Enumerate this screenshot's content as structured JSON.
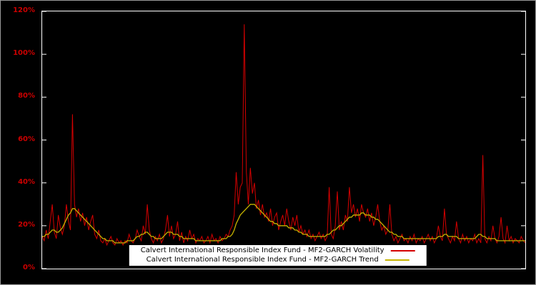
{
  "figure": {
    "background_color": "#000000",
    "plot_border_color": "#ffffff",
    "axis_label_color": "#cc0000",
    "outer_border_color": "#9a9a9a"
  },
  "chart_data": {
    "type": "line",
    "title": "",
    "xlabel": "",
    "ylabel": "",
    "ylim": [
      0,
      120
    ],
    "ytick_values": [
      0,
      20,
      40,
      60,
      80,
      100,
      120
    ],
    "ytick_labels": [
      "0%",
      "20%",
      "40%",
      "60%",
      "80%",
      "100%",
      "120%"
    ],
    "xtick_labels": [],
    "grid": false,
    "legend_position": "inside-bottom-center",
    "series": [
      {
        "id": "volatility",
        "name": "Calvert International Responsible Index Fund - MF2-GARCH Volatility",
        "color": "#d40000",
        "stroke_width": 1,
        "values": [
          15,
          13,
          18,
          14,
          22,
          30,
          17,
          14,
          25,
          19,
          16,
          20,
          30,
          22,
          18,
          72,
          30,
          24,
          28,
          22,
          26,
          20,
          24,
          18,
          22,
          25,
          16,
          14,
          18,
          13,
          12,
          14,
          11,
          13,
          15,
          12,
          11,
          14,
          12,
          13,
          11,
          13,
          12,
          16,
          13,
          12,
          14,
          18,
          15,
          13,
          20,
          16,
          30,
          18,
          14,
          12,
          15,
          13,
          16,
          12,
          14,
          18,
          25,
          15,
          20,
          14,
          16,
          22,
          13,
          17,
          12,
          15,
          13,
          18,
          14,
          16,
          12,
          14,
          13,
          15,
          12,
          13,
          15,
          12,
          16,
          13,
          14,
          12,
          15,
          13,
          14,
          16,
          15,
          18,
          20,
          25,
          45,
          30,
          38,
          40,
          114,
          45,
          30,
          47,
          35,
          40,
          28,
          32,
          25,
          30,
          24,
          26,
          22,
          28,
          20,
          24,
          26,
          18,
          22,
          25,
          20,
          28,
          22,
          18,
          24,
          20,
          25,
          17,
          20,
          16,
          18,
          15,
          18,
          14,
          16,
          13,
          15,
          17,
          14,
          16,
          13,
          15,
          38,
          16,
          14,
          20,
          36,
          18,
          22,
          18,
          25,
          22,
          38,
          26,
          30,
          24,
          28,
          22,
          30,
          26,
          24,
          28,
          22,
          26,
          20,
          24,
          30,
          22,
          18,
          20,
          16,
          18,
          30,
          16,
          13,
          15,
          12,
          14,
          16,
          13,
          14,
          12,
          15,
          13,
          16,
          12,
          14,
          13,
          15,
          12,
          14,
          16,
          13,
          15,
          12,
          14,
          20,
          15,
          13,
          28,
          16,
          14,
          12,
          15,
          13,
          22,
          14,
          12,
          16,
          13,
          15,
          12,
          14,
          13,
          16,
          12,
          14,
          12,
          53,
          14,
          12,
          15,
          13,
          20,
          14,
          12,
          15,
          24,
          14,
          12,
          20,
          13,
          15,
          12,
          14,
          13,
          12,
          15,
          13,
          12
        ]
      },
      {
        "id": "trend",
        "name": "Calvert International Responsible Index Fund - MF2-GARCH Trend",
        "color": "#c6b400",
        "stroke_width": 1.3,
        "values": [
          15,
          15,
          16,
          16,
          17,
          18,
          18,
          17,
          17,
          18,
          19,
          21,
          23,
          25,
          26,
          28,
          28,
          27,
          26,
          25,
          24,
          23,
          22,
          21,
          20,
          19,
          18,
          17,
          16,
          15,
          14,
          14,
          13,
          13,
          13,
          13,
          12,
          12,
          12,
          12,
          12,
          12,
          13,
          13,
          13,
          13,
          14,
          15,
          15,
          16,
          16,
          17,
          17,
          16,
          15,
          15,
          14,
          14,
          14,
          14,
          15,
          16,
          17,
          17,
          17,
          16,
          16,
          16,
          15,
          15,
          14,
          14,
          14,
          14,
          14,
          14,
          13,
          13,
          13,
          13,
          13,
          13,
          13,
          13,
          13,
          13,
          13,
          13,
          13,
          14,
          14,
          14,
          15,
          15,
          16,
          18,
          21,
          23,
          25,
          26,
          27,
          28,
          29,
          30,
          30,
          30,
          29,
          28,
          27,
          26,
          25,
          24,
          23,
          22,
          22,
          21,
          21,
          20,
          20,
          20,
          20,
          20,
          19,
          19,
          19,
          18,
          18,
          17,
          17,
          16,
          16,
          16,
          15,
          15,
          15,
          15,
          15,
          15,
          15,
          15,
          15,
          16,
          16,
          17,
          18,
          18,
          19,
          20,
          20,
          21,
          22,
          23,
          24,
          24,
          25,
          25,
          25,
          25,
          26,
          26,
          25,
          25,
          25,
          24,
          24,
          23,
          23,
          22,
          21,
          20,
          19,
          18,
          17,
          17,
          16,
          16,
          15,
          15,
          15,
          14,
          14,
          14,
          14,
          14,
          14,
          14,
          14,
          14,
          14,
          14,
          14,
          14,
          14,
          14,
          14,
          14,
          15,
          15,
          15,
          16,
          16,
          15,
          15,
          15,
          15,
          15,
          14,
          14,
          14,
          14,
          14,
          14,
          14,
          14,
          14,
          15,
          16,
          16,
          15,
          15,
          14,
          14,
          14,
          14,
          14,
          13,
          13,
          13,
          13,
          13,
          13,
          13,
          13,
          13,
          13,
          13,
          13,
          13,
          13,
          13
        ]
      }
    ]
  }
}
